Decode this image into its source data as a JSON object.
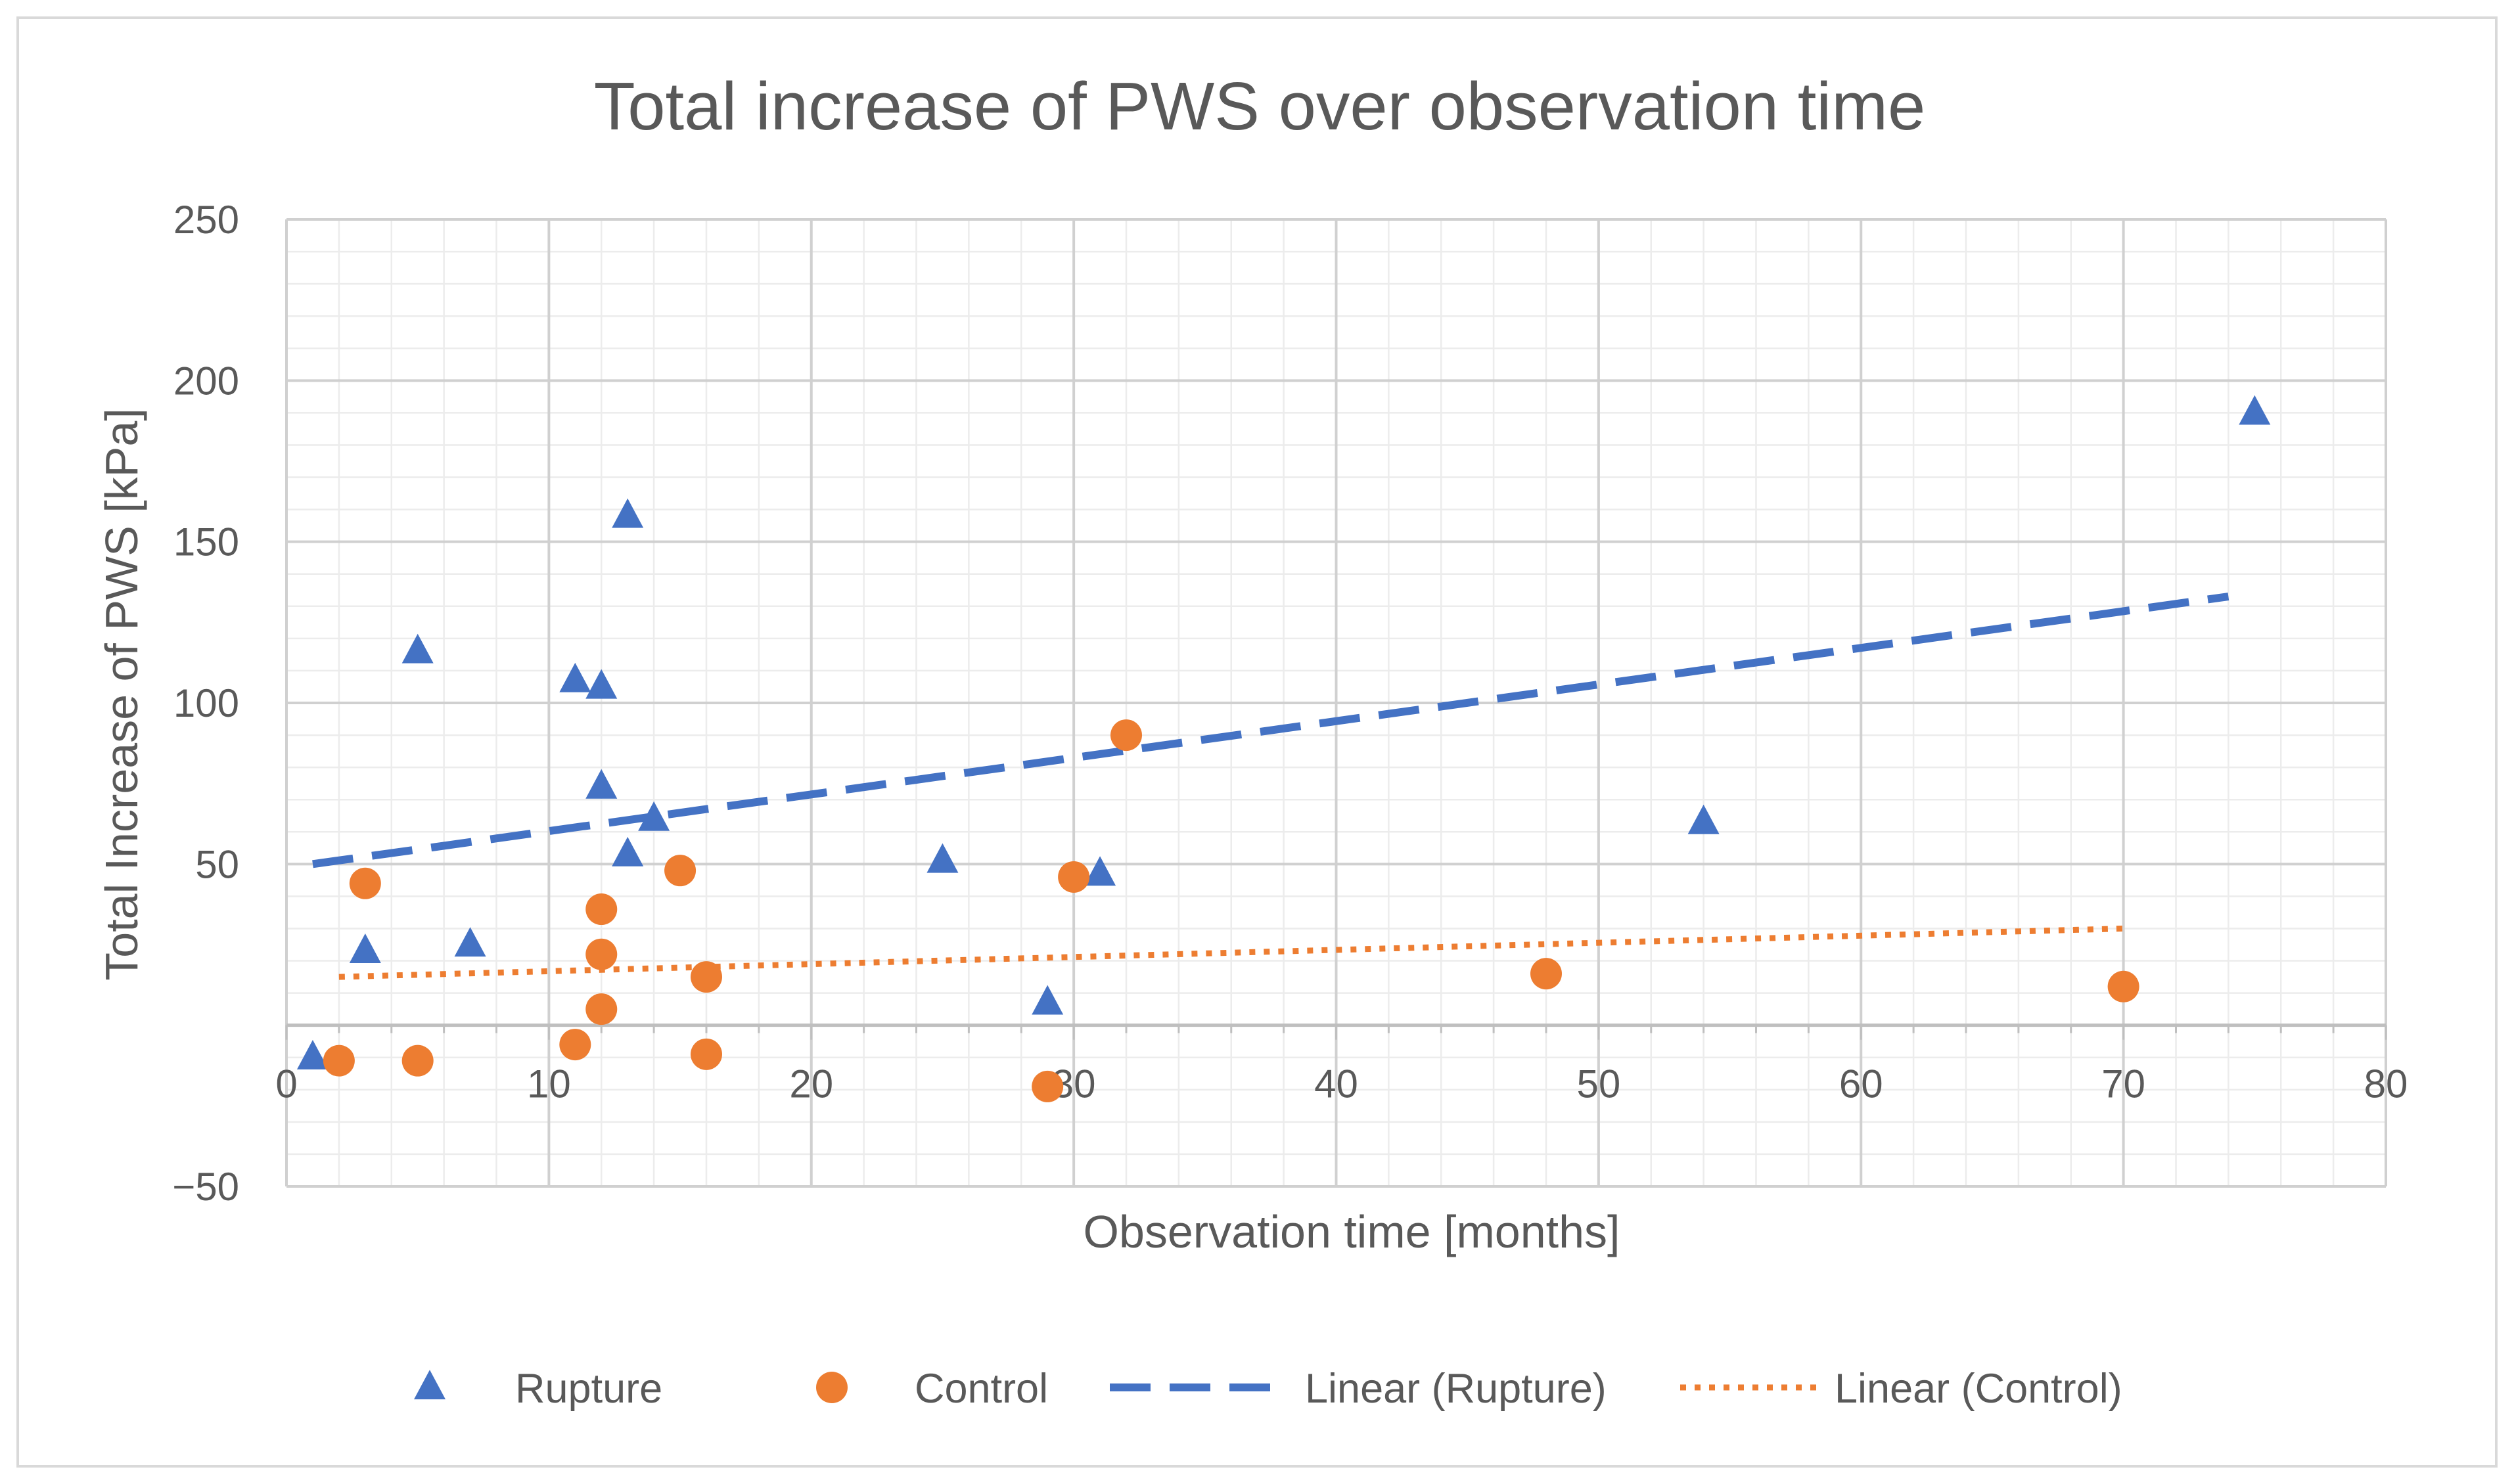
{
  "chart_data": {
    "type": "scatter",
    "title": "Total increase of PWS over observation time",
    "xlabel": "Observation time [months]",
    "ylabel": "Total Increase of PWS [kPa]",
    "xlim": [
      0,
      80
    ],
    "ylim": [
      -50,
      250
    ],
    "xticks": [
      0,
      10,
      20,
      30,
      40,
      50,
      60,
      70,
      80
    ],
    "xtick_labels": [
      "0",
      "10",
      "20",
      "30",
      "40",
      "50",
      "60",
      "70",
      "80"
    ],
    "yticks": [
      -50,
      50,
      100,
      150,
      200,
      250
    ],
    "ytick_labels": [
      "−50",
      "50",
      "100",
      "150",
      "200",
      "250"
    ],
    "grid": true,
    "minor_grid": true,
    "legend_position": "bottom",
    "series": [
      {
        "name": "Rupture",
        "marker": "triangle",
        "color": "#4472c4",
        "points": [
          {
            "x": 1,
            "y": -10
          },
          {
            "x": 3,
            "y": 23
          },
          {
            "x": 5,
            "y": 116
          },
          {
            "x": 7,
            "y": 25
          },
          {
            "x": 11,
            "y": 107
          },
          {
            "x": 12,
            "y": 105
          },
          {
            "x": 12,
            "y": 74
          },
          {
            "x": 13,
            "y": 53
          },
          {
            "x": 13,
            "y": 158
          },
          {
            "x": 14,
            "y": 64
          },
          {
            "x": 25,
            "y": 51
          },
          {
            "x": 29,
            "y": 7
          },
          {
            "x": 31,
            "y": 47
          },
          {
            "x": 54,
            "y": 63
          },
          {
            "x": 75,
            "y": 190
          }
        ]
      },
      {
        "name": "Control",
        "marker": "circle",
        "color": "#ed7d31",
        "points": [
          {
            "x": 2,
            "y": -11
          },
          {
            "x": 3,
            "y": 44
          },
          {
            "x": 5,
            "y": -11
          },
          {
            "x": 11,
            "y": -6
          },
          {
            "x": 12,
            "y": 36
          },
          {
            "x": 12,
            "y": 22
          },
          {
            "x": 12,
            "y": 5
          },
          {
            "x": 15,
            "y": 48
          },
          {
            "x": 16,
            "y": 15
          },
          {
            "x": 16,
            "y": -9
          },
          {
            "x": 29,
            "y": -19
          },
          {
            "x": 30,
            "y": 46
          },
          {
            "x": 32,
            "y": 90
          },
          {
            "x": 48,
            "y": 16
          },
          {
            "x": 70,
            "y": 12
          }
        ]
      }
    ],
    "trendlines": [
      {
        "name": "Linear (Rupture)",
        "color": "#4472c4",
        "style": "dashed",
        "x": [
          1,
          74
        ],
        "y": [
          50,
          133
        ]
      },
      {
        "name": "Linear (Control)",
        "color": "#ed7d31",
        "style": "dotted",
        "x": [
          2,
          70
        ],
        "y": [
          15,
          30
        ]
      }
    ]
  }
}
